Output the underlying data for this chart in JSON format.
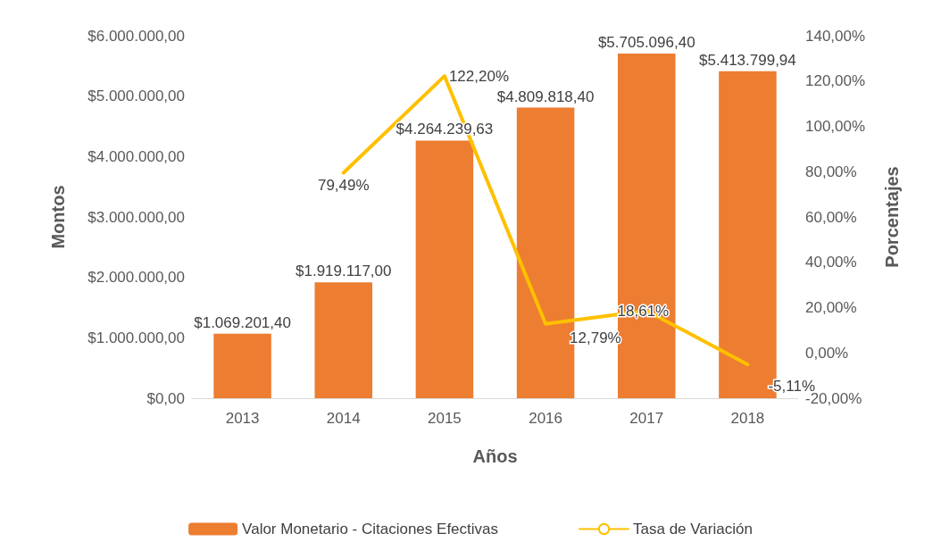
{
  "chart_data": {
    "type": "bar",
    "xlabel": "Años",
    "ylabel": "Montos",
    "y2label": "Porcentajes",
    "categories": [
      "2013",
      "2014",
      "2015",
      "2016",
      "2017",
      "2018"
    ],
    "series": [
      {
        "name": "Valor Monetario - Citaciones Efectivas",
        "color": "#ed7d31",
        "values": [
          1069201.4,
          1919117.0,
          4264239.63,
          4809818.4,
          5705096.4,
          5413799.94
        ],
        "value_labels": [
          "$1.069.201,40",
          "$1.919.117,00",
          "$4.264.239,63",
          "$4.809.818,40",
          "$5.705.096,40",
          "$5.413.799,94"
        ]
      },
      {
        "name": "Tasa de Variación",
        "type": "line",
        "axis": "y2",
        "color": "#ffc000",
        "values": [
          null,
          79.49,
          122.2,
          12.79,
          18.61,
          -5.11
        ],
        "value_labels": [
          null,
          "79,49%",
          "122,20%",
          "12,79%",
          "18,61%",
          "-5,11%"
        ]
      }
    ],
    "ylim": [
      0,
      6000000
    ],
    "yticks": [
      {
        "value": 0,
        "label": "$0,00"
      },
      {
        "value": 1000000,
        "label": "$1.000.000,00"
      },
      {
        "value": 2000000,
        "label": "$2.000.000,00"
      },
      {
        "value": 3000000,
        "label": "$3.000.000,00"
      },
      {
        "value": 4000000,
        "label": "$4.000.000,00"
      },
      {
        "value": 5000000,
        "label": "$5.000.000,00"
      },
      {
        "value": 6000000,
        "label": "$6.000.000,00"
      }
    ],
    "y2lim": [
      -20,
      140
    ],
    "y2ticks": [
      {
        "value": -20,
        "label": "-20,00%"
      },
      {
        "value": 0,
        "label": "0,00%"
      },
      {
        "value": 20,
        "label": "20,00%"
      },
      {
        "value": 40,
        "label": "40,00%"
      },
      {
        "value": 60,
        "label": "60,00%"
      },
      {
        "value": 80,
        "label": "80,00%"
      },
      {
        "value": 100,
        "label": "100,00%"
      },
      {
        "value": 120,
        "label": "120,00%"
      },
      {
        "value": 140,
        "label": "140,00%"
      }
    ],
    "legend": "bottom",
    "grid": false,
    "marker": "none",
    "line_style": "solid"
  }
}
